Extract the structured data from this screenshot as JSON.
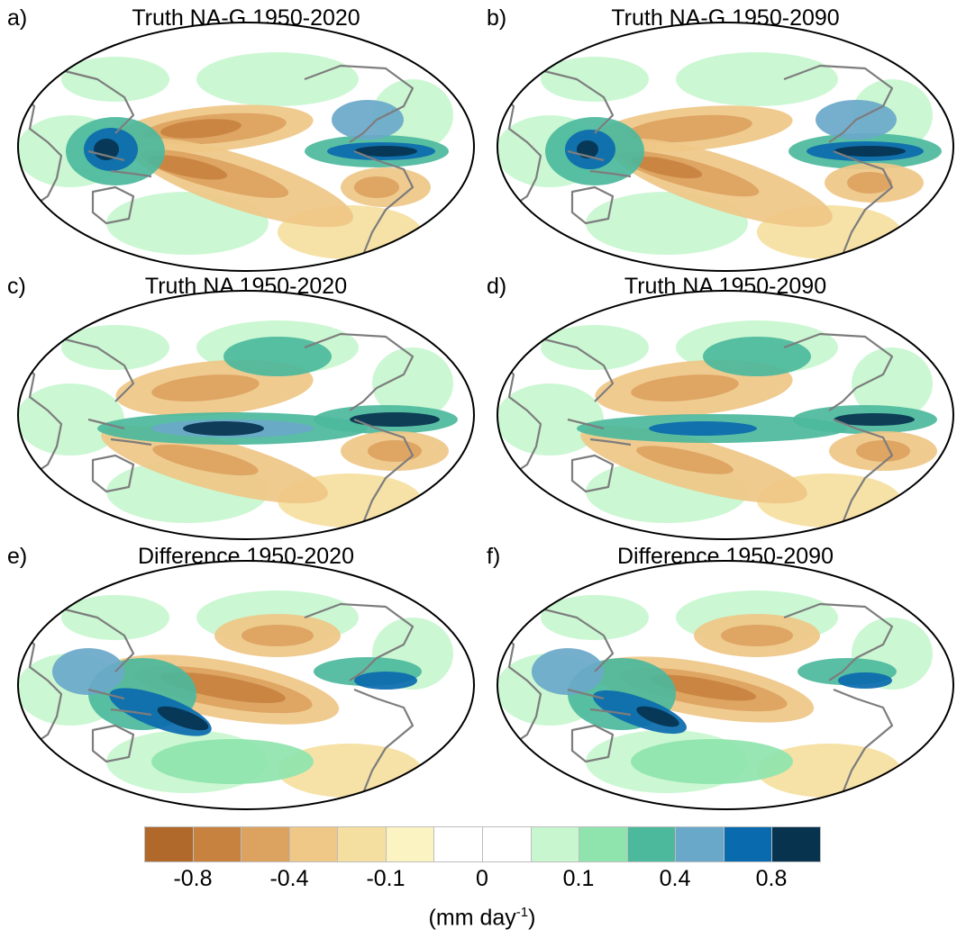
{
  "panels": [
    {
      "letter": "a)",
      "title": "Truth NA-G 1950-2020"
    },
    {
      "letter": "b)",
      "title": "Truth NA-G 1950-2090"
    },
    {
      "letter": "c)",
      "title": "Truth NA 1950-2020"
    },
    {
      "letter": "d)",
      "title": "Truth NA 1950-2090"
    },
    {
      "letter": "e)",
      "title": "Difference 1950-2020"
    },
    {
      "letter": "f)",
      "title": "Difference 1950-2090"
    }
  ],
  "colorbar": {
    "colors": [
      "#b0692a",
      "#c88240",
      "#dca260",
      "#efc787",
      "#f5dfa0",
      "#fcf3c2",
      "#ffffff",
      "#ffffff",
      "#c7f6cf",
      "#8fe4ae",
      "#4cb99c",
      "#6aa8c9",
      "#0a6aae",
      "#07334f"
    ],
    "tick_labels": [
      "-0.8",
      "-0.4",
      "-0.1",
      "0",
      "0.1",
      "0.4",
      "0.8"
    ],
    "units_text": "(mm day",
    "units_sup": "-1",
    "units_close": ")"
  },
  "legend_colors": {
    "coast": "#7d7d7d",
    "outline": "#000000"
  }
}
